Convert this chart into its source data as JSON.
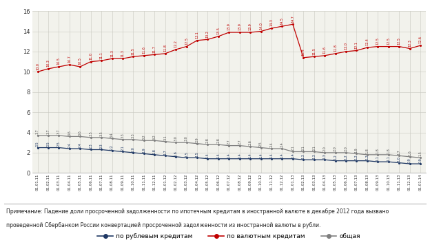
{
  "x_labels": [
    "01.01.11",
    "01.02.11",
    "01.03.11",
    "01.04.11",
    "01.05.11",
    "01.06.11",
    "01.07.11",
    "01.08.11",
    "01.09.11",
    "01.10.11",
    "01.11.11",
    "01.12.11",
    "01.01.12",
    "01.02.12",
    "01.03.12",
    "01.04.12",
    "01.05.12",
    "01.06.12",
    "01.07.12",
    "01.08.12",
    "01.09.12",
    "01.10.12",
    "01.11.12",
    "01.12.12",
    "01.01.13",
    "01.02.13",
    "01.03.13",
    "01.04.13",
    "01.05.13",
    "01.06.13",
    "01.07.13",
    "01.08.13",
    "01.09.13",
    "01.10.13",
    "01.11.13",
    "01.12.13",
    "01.01.14"
  ],
  "rub": [
    2.5,
    2.5,
    2.5,
    2.4,
    2.4,
    2.3,
    2.3,
    2.2,
    2.1,
    2.0,
    1.9,
    1.8,
    1.7,
    1.6,
    1.5,
    1.5,
    1.4,
    1.4,
    1.4,
    1.4,
    1.4,
    1.4,
    1.4,
    1.4,
    1.4,
    1.3,
    1.3,
    1.3,
    1.2,
    1.2,
    1.2,
    1.2,
    1.1,
    1.1,
    1.0,
    0.9,
    0.9
  ],
  "val": [
    10.0,
    10.3,
    10.5,
    10.7,
    10.5,
    11.0,
    11.1,
    11.3,
    11.3,
    11.5,
    11.6,
    11.7,
    11.8,
    12.2,
    12.5,
    13.1,
    13.2,
    13.5,
    13.9,
    13.9,
    13.9,
    14.0,
    14.3,
    14.5,
    14.7,
    11.4,
    11.5,
    11.6,
    11.8,
    12.0,
    12.1,
    12.4,
    12.5,
    12.5,
    12.5,
    12.3,
    12.6
  ],
  "total": [
    3.7,
    3.7,
    3.7,
    3.6,
    3.6,
    3.5,
    3.5,
    3.4,
    3.3,
    3.3,
    3.2,
    3.2,
    3.1,
    3.0,
    3.0,
    2.9,
    2.8,
    2.8,
    2.7,
    2.7,
    2.6,
    2.5,
    2.4,
    2.4,
    2.1,
    2.1,
    2.1,
    2.0,
    2.0,
    2.0,
    1.9,
    1.8,
    1.8,
    1.8,
    1.7,
    1.6,
    1.5
  ],
  "rub_color": "#1f3864",
  "val_color": "#c00000",
  "total_color": "#7f7f7f",
  "bg_color": "#f2f2ec",
  "grid_color": "#c8c8c0",
  "ylim": [
    0,
    16
  ],
  "yticks": [
    0,
    2,
    4,
    6,
    8,
    10,
    12,
    14,
    16
  ],
  "legend_labels": [
    "по рублевым кредитам",
    "по валютным кредитам",
    "общая"
  ],
  "footnote_line1": "Примечание: Падение доли просроченной задолженности по ипотечным кредитам в иностранной валюте в декабре 2012 года вызвано",
  "footnote_line2": "проведенной Сбербанком России конвертацией просроченной задолженности из иностранной валюты в рубли."
}
